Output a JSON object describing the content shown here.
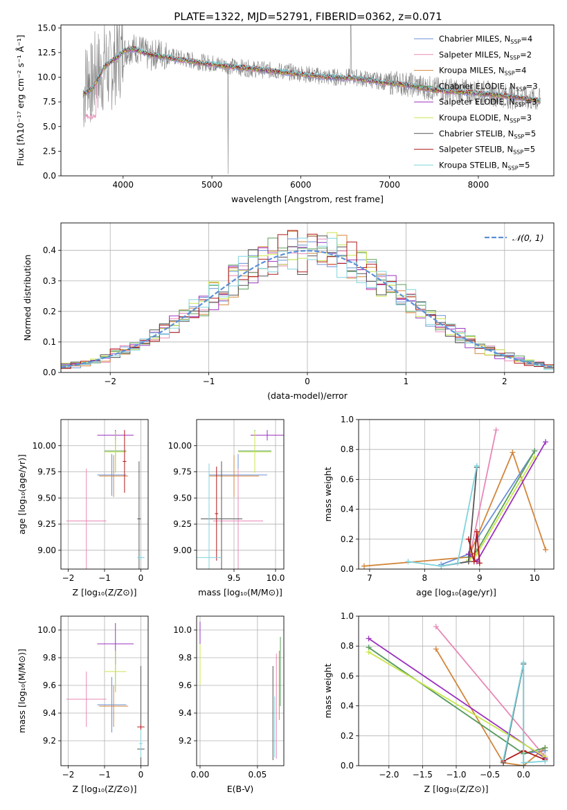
{
  "title": "PLATE=1322, MJD=52791, FIBERID=0362, z=0.071",
  "models": [
    {
      "name": "Chabrier MILES",
      "nssp": "4",
      "color": "#6b8fd6"
    },
    {
      "name": "Salpeter MILES",
      "nssp": "2",
      "color": "#e887b5"
    },
    {
      "name": "Kroupa MILES",
      "nssp": "4",
      "color": "#d2853a"
    },
    {
      "name": "Chabrier ELODIE",
      "nssp": "3",
      "color": "#5a9e5a"
    },
    {
      "name": "Salpeter ELODIE",
      "nssp": "3",
      "color": "#9b30c0"
    },
    {
      "name": "Kroupa ELODIE",
      "nssp": "3",
      "color": "#c8e64a"
    },
    {
      "name": "Chabrier STELIB",
      "nssp": "5",
      "color": "#555555"
    },
    {
      "name": "Salpeter STELIB",
      "nssp": "5",
      "color": "#b01818"
    },
    {
      "name": "Kroupa STELIB",
      "nssp": "5",
      "color": "#7fd3dc"
    }
  ],
  "legend_suffix": "N",
  "legend_sub": "SSP",
  "chart_data": [
    {
      "id": "spectrum",
      "type": "line",
      "xlabel": "wavelength [Angstrom, rest frame]",
      "ylabel": "Flux [fλ10⁻¹⁷ erg cm⁻² s⁻¹ Å⁻¹]",
      "xlim": [
        3300,
        8850
      ],
      "ylim": [
        0,
        15.3
      ],
      "xticks": [
        4000,
        5000,
        6000,
        7000,
        8000
      ],
      "yticks": [
        0.0,
        2.5,
        5.0,
        7.5,
        10.0,
        12.5,
        15.0
      ],
      "grid": false,
      "legend": "top-right",
      "data_color": "#808080",
      "data_points": [
        [
          3550,
          8.0
        ],
        [
          3600,
          10.5
        ],
        [
          3650,
          9.0
        ],
        [
          3700,
          11.0
        ],
        [
          3750,
          10.0
        ],
        [
          3800,
          11.5
        ],
        [
          3850,
          10.5
        ],
        [
          3900,
          11.5
        ],
        [
          3950,
          12.0
        ],
        [
          4000,
          12.5
        ],
        [
          4100,
          13.0
        ],
        [
          4200,
          12.8
        ],
        [
          4300,
          12.0
        ],
        [
          4400,
          12.5
        ],
        [
          4500,
          12.2
        ],
        [
          4700,
          11.8
        ],
        [
          4900,
          11.5
        ],
        [
          5100,
          11.3
        ],
        [
          5300,
          11.0
        ],
        [
          5500,
          10.8
        ],
        [
          5800,
          10.6
        ],
        [
          6000,
          10.4
        ],
        [
          6300,
          10.0
        ],
        [
          6600,
          10.0
        ],
        [
          6900,
          9.6
        ],
        [
          7200,
          9.3
        ],
        [
          7500,
          8.8
        ],
        [
          7800,
          8.6
        ],
        [
          8100,
          8.4
        ],
        [
          8400,
          8.0
        ],
        [
          8600,
          7.8
        ],
        [
          8700,
          7.6
        ]
      ],
      "model_points": [
        [
          3550,
          8.3
        ],
        [
          3650,
          8.8
        ],
        [
          3800,
          11.2
        ],
        [
          3900,
          11.8
        ],
        [
          4000,
          12.6
        ],
        [
          4100,
          12.9
        ],
        [
          4300,
          12.3
        ],
        [
          4500,
          12.0
        ],
        [
          4700,
          11.7
        ],
        [
          4900,
          11.4
        ],
        [
          5100,
          11.2
        ],
        [
          5300,
          11.0
        ],
        [
          5500,
          10.8
        ],
        [
          5800,
          10.5
        ],
        [
          6000,
          10.3
        ],
        [
          6300,
          10.0
        ],
        [
          6600,
          9.9
        ],
        [
          6900,
          9.5
        ],
        [
          7200,
          9.2
        ],
        [
          7500,
          8.7
        ],
        [
          7800,
          8.5
        ],
        [
          8100,
          8.3
        ],
        [
          8400,
          8.0
        ],
        [
          8700,
          7.6
        ]
      ]
    },
    {
      "id": "residuals",
      "type": "histogram",
      "xlabel": "(data-model)/error",
      "ylabel": "Normed distribution",
      "xlim": [
        -2.5,
        2.5
      ],
      "ylim": [
        0,
        0.49
      ],
      "xticks": [
        -2,
        -1,
        0,
        1,
        2
      ],
      "yticks": [
        0.0,
        0.1,
        0.2,
        0.3,
        0.4
      ],
      "grid": true,
      "legend": "top-right",
      "reference_label": "𝒩(0, 1)",
      "reference_color": "#5b8fd6",
      "bin_width": 0.1
    },
    {
      "id": "age_vs_Z",
      "type": "scatter",
      "xlabel": "Z [log₁₀(Z/Z⊙)]",
      "ylabel": "age  [log₁₀(age/yr)]",
      "xlim": [
        -2.2,
        0.2
      ],
      "ylim": [
        8.82,
        10.25
      ],
      "xticks": [
        -2,
        -1,
        0
      ],
      "yticks": [
        9.0,
        9.25,
        9.5,
        9.75,
        10.0
      ],
      "points": [
        {
          "model": 0,
          "x": -0.8,
          "y": 9.72,
          "xerr": 0.4,
          "yerr": 0.2
        },
        {
          "model": 1,
          "x": -1.5,
          "y": 9.28,
          "xerr": 0.55,
          "yerr": 0.5
        },
        {
          "model": 2,
          "x": -0.75,
          "y": 9.71,
          "xerr": 0.4,
          "yerr": 0.2
        },
        {
          "model": 3,
          "x": -0.7,
          "y": 9.95,
          "xerr": 0.3,
          "yerr": 0.2
        },
        {
          "model": 4,
          "x": -0.7,
          "y": 10.1,
          "xerr": 0.5,
          "yerr": 0.05
        },
        {
          "model": 5,
          "x": -0.7,
          "y": 9.94,
          "xerr": 0.3,
          "yerr": 0.2
        },
        {
          "model": 6,
          "x": -0.05,
          "y": 9.3,
          "xerr": 0.05,
          "yerr": 0.55
        },
        {
          "model": 7,
          "x": -0.45,
          "y": 9.85,
          "xerr": 0.05,
          "yerr": 0.3
        },
        {
          "model": 8,
          "x": 0.0,
          "y": 8.93,
          "xerr": 0.1,
          "yerr": 0.02
        }
      ]
    },
    {
      "id": "age_vs_mass",
      "type": "scatter",
      "xlabel": "mass [log₁₀(M/M⊙)]",
      "ylabel": "",
      "xlim": [
        9.05,
        10.1
      ],
      "ylim": [
        8.82,
        10.25
      ],
      "xticks": [
        9.5,
        10.0
      ],
      "yticks": [
        9.0,
        9.25,
        9.5,
        9.75,
        10.0
      ],
      "points": [
        {
          "model": 0,
          "x": 9.55,
          "y": 9.72,
          "xerr": 0.35,
          "yerr": 0.2
        },
        {
          "model": 1,
          "x": 9.55,
          "y": 9.28,
          "xerr": 0.3,
          "yerr": 0.5
        },
        {
          "model": 2,
          "x": 9.5,
          "y": 9.71,
          "xerr": 0.3,
          "yerr": 0.2
        },
        {
          "model": 3,
          "x": 9.75,
          "y": 9.95,
          "xerr": 0.2,
          "yerr": 0.2
        },
        {
          "model": 4,
          "x": 9.9,
          "y": 10.1,
          "xerr": 0.2,
          "yerr": 0.05
        },
        {
          "model": 5,
          "x": 9.75,
          "y": 9.94,
          "xerr": 0.2,
          "yerr": 0.2
        },
        {
          "model": 6,
          "x": 9.35,
          "y": 9.3,
          "xerr": 0.25,
          "yerr": 0.55
        },
        {
          "model": 7,
          "x": 9.29,
          "y": 9.35,
          "xerr": 0.02,
          "yerr": 0.45
        },
        {
          "model": 8,
          "x": 9.2,
          "y": 8.93,
          "xerr": 0.15,
          "yerr": 0.9
        }
      ]
    },
    {
      "id": "mw_vs_age",
      "type": "line",
      "xlabel": "age  [log₁₀(age/yr)]",
      "ylabel": "mass weight",
      "xlim": [
        6.8,
        10.35
      ],
      "ylim": [
        0,
        1.0
      ],
      "xticks": [
        7,
        8,
        9,
        10
      ],
      "yticks": [
        0.0,
        0.2,
        0.4,
        0.6,
        0.8,
        1.0
      ],
      "grid": true,
      "series": [
        {
          "model": 0,
          "x": [
            8.3,
            8.8,
            8.95,
            10.0
          ],
          "y": [
            0.03,
            0.1,
            0.2,
            0.79
          ]
        },
        {
          "model": 1,
          "x": [
            8.8,
            9.3
          ],
          "y": [
            0.05,
            0.93
          ]
        },
        {
          "model": 2,
          "x": [
            6.9,
            8.8,
            9.6,
            10.2
          ],
          "y": [
            0.02,
            0.08,
            0.78,
            0.13
          ]
        },
        {
          "model": 3,
          "x": [
            8.8,
            8.95,
            10.0
          ],
          "y": [
            0.08,
            0.12,
            0.79
          ]
        },
        {
          "model": 4,
          "x": [
            8.8,
            8.95,
            10.2
          ],
          "y": [
            0.1,
            0.05,
            0.85
          ]
        },
        {
          "model": 5,
          "x": [
            8.8,
            8.95,
            10.0
          ],
          "y": [
            0.06,
            0.1,
            0.75
          ]
        },
        {
          "model": 6,
          "x": [
            8.3,
            8.8,
            8.95
          ],
          "y": [
            0.02,
            0.05,
            0.68
          ]
        },
        {
          "model": 7,
          "x": [
            8.8,
            8.9,
            8.95,
            9.0
          ],
          "y": [
            0.2,
            0.05,
            0.25,
            0.04
          ]
        },
        {
          "model": 8,
          "x": [
            7.7,
            8.3,
            8.6,
            8.95
          ],
          "y": [
            0.05,
            0.02,
            0.04,
            0.69
          ]
        }
      ]
    },
    {
      "id": "mass_vs_Z",
      "type": "scatter",
      "xlabel": "Z [log₁₀(Z/Z⊙)]",
      "ylabel": "mass [log₁₀(M/M⊙)]",
      "xlim": [
        -2.2,
        0.2
      ],
      "ylim": [
        9.02,
        10.1
      ],
      "xticks": [
        -2,
        -1,
        0
      ],
      "yticks": [
        9.2,
        9.4,
        9.6,
        9.8,
        10.0
      ],
      "points": [
        {
          "model": 0,
          "x": -0.8,
          "y": 9.46,
          "xerr": 0.4,
          "yerr": 0.2
        },
        {
          "model": 1,
          "x": -1.5,
          "y": 9.5,
          "xerr": 0.55,
          "yerr": 0.2
        },
        {
          "model": 2,
          "x": -0.75,
          "y": 9.45,
          "xerr": 0.4,
          "yerr": 0.15
        },
        {
          "model": 3,
          "x": -0.7,
          "y": 9.7,
          "xerr": 0.3,
          "yerr": 0.15
        },
        {
          "model": 4,
          "x": -0.7,
          "y": 9.9,
          "xerr": 0.5,
          "yerr": 0.15
        },
        {
          "model": 5,
          "x": -0.7,
          "y": 9.7,
          "xerr": 0.3,
          "yerr": 0.15
        },
        {
          "model": 6,
          "x": 0.0,
          "y": 9.14,
          "xerr": 0.1,
          "yerr": 0.6
        },
        {
          "model": 7,
          "x": 0.0,
          "y": 9.3,
          "xerr": 0.1,
          "yerr": 0.02
        },
        {
          "model": 8,
          "x": 0.0,
          "y": 9.18,
          "xerr": 0.05,
          "yerr": 0.1
        }
      ]
    },
    {
      "id": "mass_vs_ebv",
      "type": "scatter",
      "xlabel": "E(B-V)",
      "ylabel": "",
      "xlim": [
        -0.003,
        0.073
      ],
      "ylim": [
        9.02,
        10.1
      ],
      "xticks": [
        0.0,
        0.05
      ],
      "yticks": [
        9.2,
        9.4,
        9.6,
        9.8,
        10.0
      ],
      "points": [
        {
          "model": 4,
          "x": 0.0,
          "y": 9.98,
          "xerr": 0,
          "yerr": 0.08
        },
        {
          "model": 5,
          "x": 0.0,
          "y": 9.75,
          "xerr": 0,
          "yerr": 0.15
        },
        {
          "model": 6,
          "x": 0.0635,
          "y": 9.4,
          "xerr": 0,
          "yerr": 0.34
        },
        {
          "model": 1,
          "x": 0.0665,
          "y": 9.45,
          "xerr": 0,
          "yerr": 0.38
        },
        {
          "model": 2,
          "x": 0.069,
          "y": 9.6,
          "xerr": 0,
          "yerr": 0.25
        },
        {
          "model": 8,
          "x": 0.065,
          "y": 9.3,
          "xerr": 0,
          "yerr": 0.22
        },
        {
          "model": 3,
          "x": 0.07,
          "y": 9.7,
          "xerr": 0,
          "yerr": 0.25
        }
      ]
    },
    {
      "id": "mw_vs_Z",
      "type": "line",
      "xlabel": "Z [log₁₀(Z/Z⊙)]",
      "ylabel": "mass weight",
      "xlim": [
        -2.45,
        0.45
      ],
      "ylim": [
        0,
        1.0
      ],
      "xticks": [
        -2.0,
        -1.5,
        -1.0,
        -0.5,
        0.0
      ],
      "yticks": [
        0.0,
        0.2,
        0.4,
        0.6,
        0.8,
        1.0
      ],
      "grid": true,
      "series": [
        {
          "model": 0,
          "x": [
            -2.3,
            0.0,
            0.32
          ],
          "y": [
            0.79,
            0.08,
            0.1
          ]
        },
        {
          "model": 1,
          "x": [
            -1.3,
            0.3
          ],
          "y": [
            0.93,
            0.07
          ]
        },
        {
          "model": 2,
          "x": [
            -1.3,
            -0.3,
            0.0,
            0.32
          ],
          "y": [
            0.78,
            0.02,
            0.0,
            0.12
          ]
        },
        {
          "model": 3,
          "x": [
            -2.3,
            0.0,
            0.32
          ],
          "y": [
            0.79,
            0.08,
            0.12
          ]
        },
        {
          "model": 4,
          "x": [
            -2.3,
            0.32
          ],
          "y": [
            0.85,
            0.05
          ]
        },
        {
          "model": 5,
          "x": [
            -2.3,
            0.32
          ],
          "y": [
            0.76,
            0.06
          ]
        },
        {
          "model": 6,
          "x": [
            -0.3,
            0.0,
            0.0
          ],
          "y": [
            0.02,
            0.68,
            0.0
          ]
        },
        {
          "model": 7,
          "x": [
            -0.3,
            0.0,
            0.32
          ],
          "y": [
            0.03,
            0.1,
            0.04
          ]
        },
        {
          "model": 8,
          "x": [
            -0.3,
            0.0,
            0.0,
            0.32
          ],
          "y": [
            0.04,
            0.69,
            0.02,
            0.03
          ]
        }
      ]
    }
  ]
}
